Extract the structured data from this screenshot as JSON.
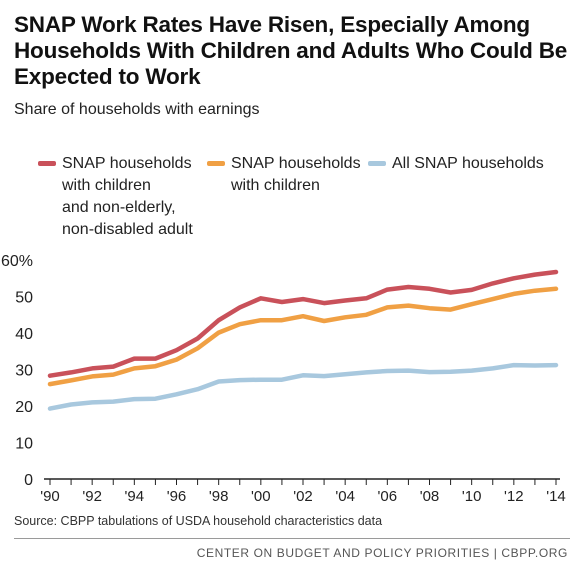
{
  "title": "SNAP Work Rates Have Risen, Especially Among Households With Children and Adults Who Could Be Expected to Work",
  "subtitle": "Share of households with earnings",
  "source": "Source: CBPP tabulations of USDA household characteristics data",
  "footer": "CENTER ON BUDGET AND POLICY PRIORITIES | CBPP.ORG",
  "colors": {
    "red": "#c9515a",
    "orange": "#f0a044",
    "blue": "#a8c8de",
    "axis": "#222222",
    "grid": "#dddddd"
  },
  "chart_data": {
    "type": "line",
    "title": "SNAP Work Rates Have Risen, Especially Among Households With Children and Adults Who Could Be Expected to Work",
    "subtitle": "Share of households with earnings",
    "x": [
      1990,
      1991,
      1992,
      1993,
      1994,
      1995,
      1996,
      1997,
      1998,
      1999,
      2000,
      2001,
      2002,
      2003,
      2004,
      2005,
      2006,
      2007,
      2008,
      2009,
      2010,
      2011,
      2012,
      2013,
      2014
    ],
    "x_tick_labels": [
      "'90",
      "'92",
      "'94",
      "'96",
      "'98",
      "'00",
      "'02",
      "'04",
      "'06",
      "'08",
      "'10",
      "'12",
      "'14"
    ],
    "y_tick_labels": [
      "60%",
      "50",
      "40",
      "30",
      "20",
      "10",
      "0"
    ],
    "ylim": [
      0,
      60
    ],
    "grid": false,
    "legend_position": "top",
    "series": [
      {
        "name": "SNAP households with children and non-elderly, non-disabled adult",
        "legend_label": "SNAP households\nwith children\nand non-elderly,\nnon-disabled adult",
        "color": "#c9515a",
        "values": [
          28.3,
          29.2,
          30.3,
          30.8,
          33.0,
          33.0,
          35.3,
          38.5,
          43.5,
          47.0,
          49.5,
          48.5,
          49.3,
          48.2,
          48.9,
          49.5,
          51.9,
          52.6,
          52.1,
          51.1,
          51.8,
          53.6,
          55.0,
          56.0,
          56.7
        ]
      },
      {
        "name": "SNAP households with children",
        "legend_label": "SNAP households\nwith children",
        "color": "#f0a044",
        "values": [
          26.0,
          27.0,
          28.1,
          28.6,
          30.3,
          30.9,
          32.7,
          35.8,
          40.1,
          42.4,
          43.5,
          43.5,
          44.6,
          43.3,
          44.3,
          45.0,
          47.0,
          47.5,
          46.8,
          46.4,
          47.9,
          49.3,
          50.7,
          51.6,
          52.1
        ]
      },
      {
        "name": "All SNAP households",
        "legend_label": "All SNAP households",
        "color": "#a8c8de",
        "values": [
          19.3,
          20.4,
          21.0,
          21.2,
          21.9,
          22.0,
          23.2,
          24.6,
          26.7,
          27.1,
          27.2,
          27.2,
          28.4,
          28.2,
          28.7,
          29.2,
          29.6,
          29.7,
          29.3,
          29.4,
          29.7,
          30.3,
          31.2,
          31.1,
          31.2
        ]
      }
    ]
  }
}
